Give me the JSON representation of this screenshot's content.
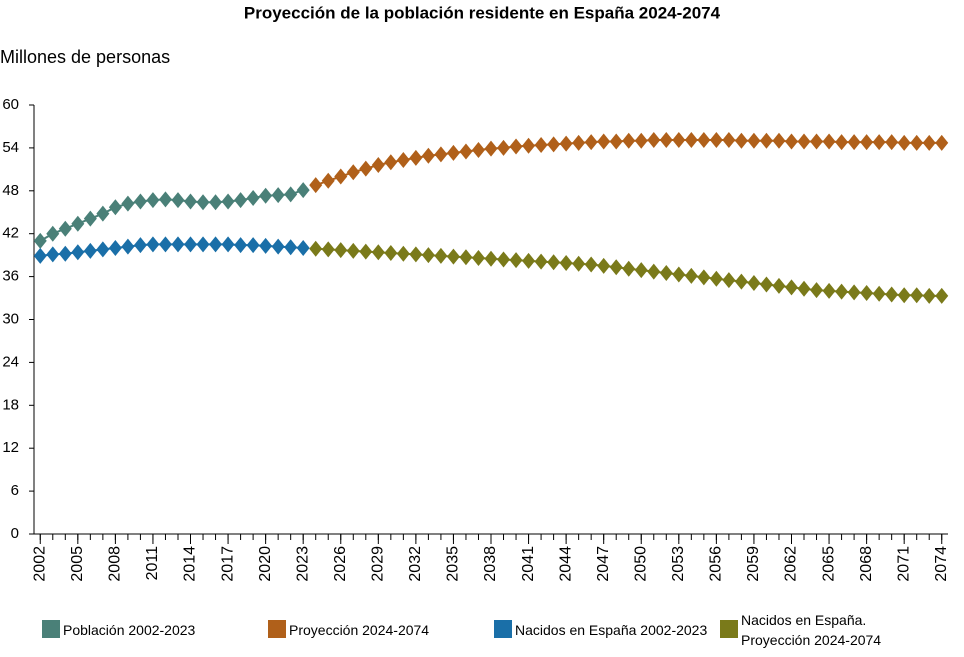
{
  "chart_data": {
    "type": "line",
    "title": "Proyección de la población residente en España 2024-2074",
    "y_label": "Millones de personas",
    "x": [
      2002,
      2003,
      2004,
      2005,
      2006,
      2007,
      2008,
      2009,
      2010,
      2011,
      2012,
      2013,
      2014,
      2015,
      2016,
      2017,
      2018,
      2019,
      2020,
      2021,
      2022,
      2023,
      2024,
      2025,
      2026,
      2027,
      2028,
      2029,
      2030,
      2031,
      2032,
      2033,
      2034,
      2035,
      2036,
      2037,
      2038,
      2039,
      2040,
      2041,
      2042,
      2043,
      2044,
      2045,
      2046,
      2047,
      2048,
      2049,
      2050,
      2051,
      2052,
      2053,
      2054,
      2055,
      2056,
      2057,
      2058,
      2059,
      2060,
      2061,
      2062,
      2063,
      2064,
      2065,
      2066,
      2067,
      2068,
      2069,
      2070,
      2071,
      2072,
      2073,
      2074
    ],
    "xlim": [
      2001.5,
      2074.5
    ],
    "xticks": [
      2002,
      2005,
      2008,
      2011,
      2014,
      2017,
      2020,
      2023,
      2026,
      2029,
      2032,
      2035,
      2038,
      2041,
      2044,
      2047,
      2050,
      2053,
      2056,
      2059,
      2062,
      2065,
      2068,
      2071,
      2074
    ],
    "ylim": [
      0,
      60
    ],
    "yticks": [
      0,
      6,
      12,
      18,
      24,
      30,
      36,
      42,
      48,
      54,
      60
    ],
    "grid": false,
    "series": [
      {
        "name": "Población 2002-2023",
        "color": "#4a8078",
        "values": [
          41.0,
          42.0,
          42.7,
          43.4,
          44.1,
          44.8,
          45.7,
          46.2,
          46.5,
          46.7,
          46.8,
          46.7,
          46.5,
          46.4,
          46.4,
          46.5,
          46.7,
          47.0,
          47.3,
          47.4,
          47.5,
          48.1,
          null,
          null,
          null,
          null,
          null,
          null,
          null,
          null,
          null,
          null,
          null,
          null,
          null,
          null,
          null,
          null,
          null,
          null,
          null,
          null,
          null,
          null,
          null,
          null,
          null,
          null,
          null,
          null,
          null,
          null,
          null,
          null,
          null,
          null,
          null,
          null,
          null,
          null,
          null,
          null,
          null,
          null,
          null,
          null,
          null,
          null,
          null,
          null,
          null,
          null,
          null
        ]
      },
      {
        "name": "Proyección 2024-2074",
        "color": "#b0601a",
        "values": [
          null,
          null,
          null,
          null,
          null,
          null,
          null,
          null,
          null,
          null,
          null,
          null,
          null,
          null,
          null,
          null,
          null,
          null,
          null,
          null,
          null,
          null,
          48.8,
          49.4,
          50.0,
          50.6,
          51.1,
          51.6,
          52.0,
          52.3,
          52.6,
          52.9,
          53.1,
          53.3,
          53.5,
          53.7,
          53.9,
          54.0,
          54.2,
          54.3,
          54.4,
          54.5,
          54.6,
          54.7,
          54.8,
          54.9,
          54.9,
          55.0,
          55.0,
          55.1,
          55.1,
          55.1,
          55.1,
          55.1,
          55.1,
          55.1,
          55.0,
          55.0,
          55.0,
          55.0,
          54.9,
          54.9,
          54.9,
          54.9,
          54.8,
          54.8,
          54.8,
          54.8,
          54.8,
          54.7,
          54.7,
          54.7,
          54.7
        ]
      },
      {
        "name": "Nacidos en España 2002-2023",
        "color": "#1a6fa8",
        "values": [
          38.9,
          39.1,
          39.2,
          39.4,
          39.6,
          39.8,
          40.0,
          40.2,
          40.4,
          40.5,
          40.5,
          40.5,
          40.5,
          40.5,
          40.5,
          40.5,
          40.4,
          40.4,
          40.3,
          40.2,
          40.1,
          40.0,
          null,
          null,
          null,
          null,
          null,
          null,
          null,
          null,
          null,
          null,
          null,
          null,
          null,
          null,
          null,
          null,
          null,
          null,
          null,
          null,
          null,
          null,
          null,
          null,
          null,
          null,
          null,
          null,
          null,
          null,
          null,
          null,
          null,
          null,
          null,
          null,
          null,
          null,
          null,
          null,
          null,
          null,
          null,
          null,
          null,
          null,
          null,
          null,
          null,
          null,
          null
        ]
      },
      {
        "name": "Nacidos en España. Proyección 2024-2074",
        "color": "#7a7a1a",
        "values": [
          null,
          null,
          null,
          null,
          null,
          null,
          null,
          null,
          null,
          null,
          null,
          null,
          null,
          null,
          null,
          null,
          null,
          null,
          null,
          null,
          null,
          null,
          39.9,
          39.8,
          39.7,
          39.6,
          39.5,
          39.4,
          39.3,
          39.2,
          39.1,
          39.0,
          38.9,
          38.8,
          38.7,
          38.6,
          38.5,
          38.4,
          38.3,
          38.2,
          38.1,
          38.0,
          37.9,
          37.8,
          37.7,
          37.5,
          37.3,
          37.1,
          36.9,
          36.7,
          36.5,
          36.3,
          36.1,
          35.9,
          35.7,
          35.5,
          35.3,
          35.1,
          34.9,
          34.7,
          34.5,
          34.3,
          34.1,
          34.0,
          33.9,
          33.8,
          33.7,
          33.6,
          33.5,
          33.4,
          33.4,
          33.3,
          33.3
        ]
      }
    ]
  }
}
